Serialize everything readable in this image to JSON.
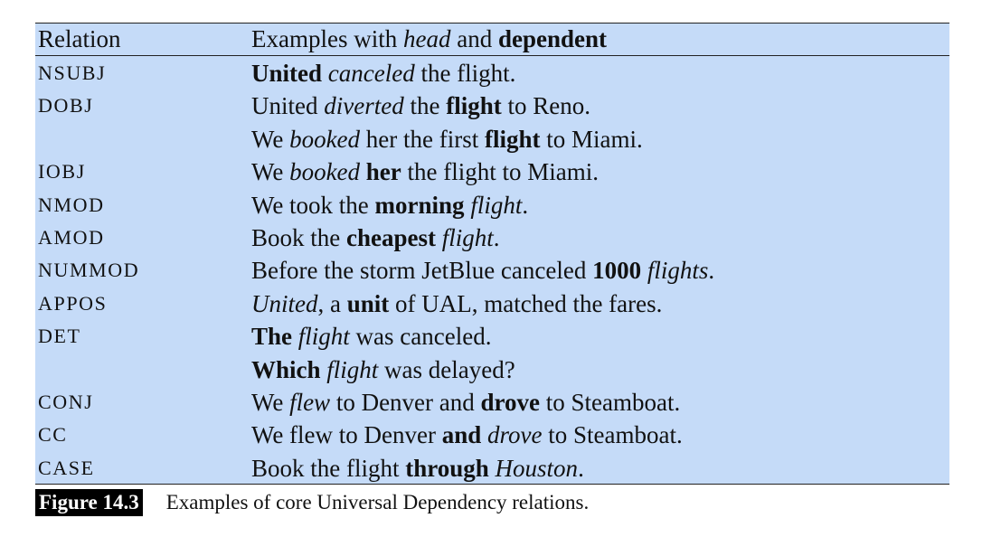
{
  "header": {
    "relation": "Relation",
    "examples": [
      {
        "t": "Examples with ",
        "s": ""
      },
      {
        "t": "head",
        "s": "i"
      },
      {
        "t": " and ",
        "s": ""
      },
      {
        "t": "dependent",
        "s": "b"
      }
    ]
  },
  "rows": [
    {
      "rel": "NSUBJ",
      "ex": [
        {
          "t": "United",
          "s": "b"
        },
        {
          "t": " ",
          "s": ""
        },
        {
          "t": "canceled",
          "s": "i"
        },
        {
          "t": " the flight.",
          "s": ""
        }
      ]
    },
    {
      "rel": "DOBJ",
      "ex": [
        {
          "t": "United ",
          "s": ""
        },
        {
          "t": "diverted",
          "s": "i"
        },
        {
          "t": " the ",
          "s": ""
        },
        {
          "t": "flight",
          "s": "b"
        },
        {
          "t": " to Reno.",
          "s": ""
        }
      ]
    },
    {
      "rel": "",
      "ex": [
        {
          "t": "We ",
          "s": ""
        },
        {
          "t": "booked",
          "s": "i"
        },
        {
          "t": " her the first ",
          "s": ""
        },
        {
          "t": "flight",
          "s": "b"
        },
        {
          "t": " to Miami.",
          "s": ""
        }
      ]
    },
    {
      "rel": "IOBJ",
      "ex": [
        {
          "t": "We ",
          "s": ""
        },
        {
          "t": "booked",
          "s": "i"
        },
        {
          "t": " ",
          "s": ""
        },
        {
          "t": "her",
          "s": "b"
        },
        {
          "t": " the flight to Miami.",
          "s": ""
        }
      ]
    },
    {
      "rel": "NMOD",
      "ex": [
        {
          "t": "We took the ",
          "s": ""
        },
        {
          "t": "morning",
          "s": "b"
        },
        {
          "t": " ",
          "s": ""
        },
        {
          "t": "flight",
          "s": "i"
        },
        {
          "t": ".",
          "s": ""
        }
      ]
    },
    {
      "rel": "AMOD",
      "ex": [
        {
          "t": "Book the ",
          "s": ""
        },
        {
          "t": "cheapest",
          "s": "b"
        },
        {
          "t": " ",
          "s": ""
        },
        {
          "t": "flight",
          "s": "i"
        },
        {
          "t": ".",
          "s": ""
        }
      ]
    },
    {
      "rel": "NUMMOD",
      "ex": [
        {
          "t": "Before the storm JetBlue canceled ",
          "s": ""
        },
        {
          "t": "1000",
          "s": "b"
        },
        {
          "t": " ",
          "s": ""
        },
        {
          "t": "flights",
          "s": "i"
        },
        {
          "t": ".",
          "s": ""
        }
      ]
    },
    {
      "rel": "APPOS",
      "ex": [
        {
          "t": "United",
          "s": "i"
        },
        {
          "t": ", a ",
          "s": ""
        },
        {
          "t": "unit",
          "s": "b"
        },
        {
          "t": " of UAL, matched the fares.",
          "s": ""
        }
      ]
    },
    {
      "rel": "DET",
      "ex": [
        {
          "t": "The",
          "s": "b"
        },
        {
          "t": " ",
          "s": ""
        },
        {
          "t": "flight",
          "s": "i"
        },
        {
          "t": " was canceled.",
          "s": ""
        }
      ]
    },
    {
      "rel": "",
      "ex": [
        {
          "t": "Which",
          "s": "b"
        },
        {
          "t": " ",
          "s": ""
        },
        {
          "t": "flight",
          "s": "i"
        },
        {
          "t": " was delayed?",
          "s": ""
        }
      ]
    },
    {
      "rel": "CONJ",
      "ex": [
        {
          "t": "We ",
          "s": ""
        },
        {
          "t": "flew",
          "s": "i"
        },
        {
          "t": " to Denver and ",
          "s": ""
        },
        {
          "t": "drove",
          "s": "b"
        },
        {
          "t": " to Steamboat.",
          "s": ""
        }
      ]
    },
    {
      "rel": "CC",
      "ex": [
        {
          "t": "We flew to Denver ",
          "s": ""
        },
        {
          "t": "and",
          "s": "b"
        },
        {
          "t": " ",
          "s": ""
        },
        {
          "t": "drove",
          "s": "i"
        },
        {
          "t": " to Steamboat.",
          "s": ""
        }
      ]
    },
    {
      "rel": "CASE",
      "ex": [
        {
          "t": "Book the flight ",
          "s": ""
        },
        {
          "t": "through",
          "s": "b"
        },
        {
          "t": " ",
          "s": ""
        },
        {
          "t": "Houston",
          "s": "i"
        },
        {
          "t": ".",
          "s": ""
        }
      ]
    }
  ],
  "caption": {
    "label": "Figure 14.3",
    "text": "Examples of core Universal Dependency relations."
  },
  "colors": {
    "table_background": "#c5dbf8",
    "rule": "#222222",
    "caption_label_bg": "#000000"
  }
}
